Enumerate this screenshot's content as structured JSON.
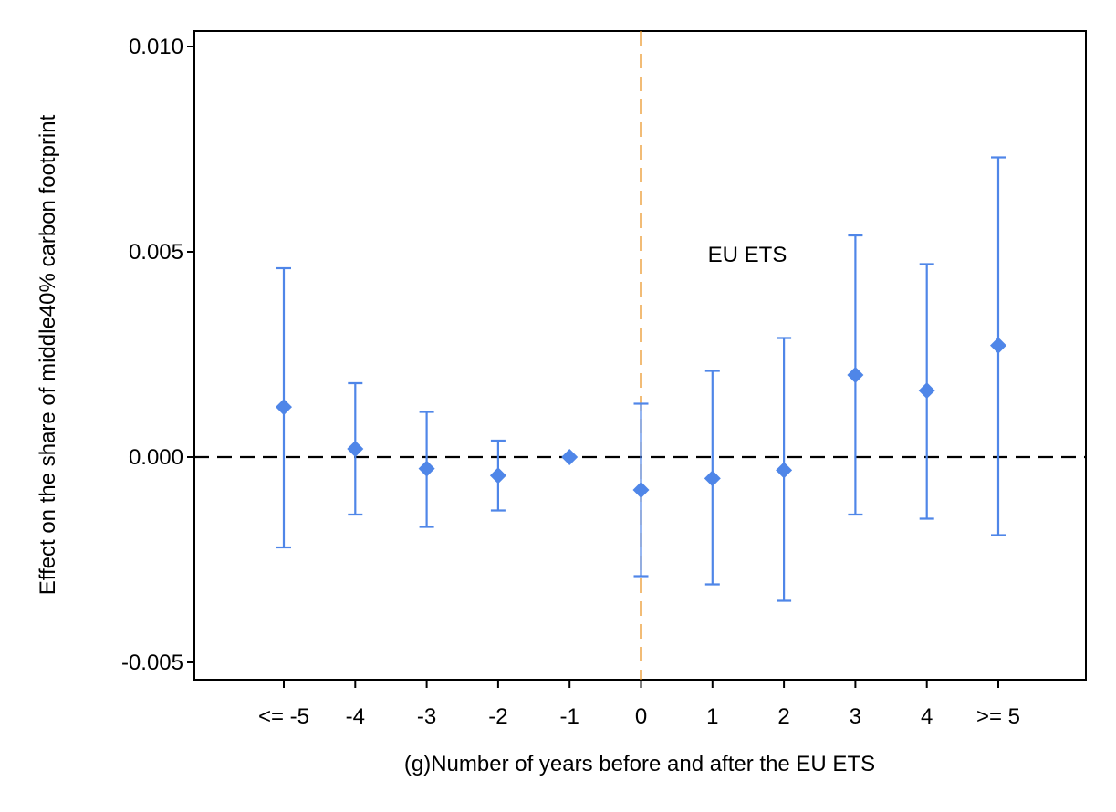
{
  "chart_data": {
    "type": "scatter",
    "title": "",
    "xlabel": "(g)Number of years before and after the EU ETS",
    "ylabel": "Effect on the share of middle40% carbon footprint",
    "categories": [
      "<= -5",
      "-4",
      "-3",
      "-2",
      "-1",
      "0",
      "1",
      "2",
      "3",
      "4",
      ">= 5"
    ],
    "ylim": [
      -0.0055,
      0.0104
    ],
    "yticks": [
      {
        "value": -0.005,
        "label": "-0.005"
      },
      {
        "value": 0.0,
        "label": "0.000"
      },
      {
        "value": 0.005,
        "label": "0.005"
      },
      {
        "value": 0.01,
        "label": "0.010"
      }
    ],
    "series": [
      {
        "estimates": [
          0.00122,
          0.0002,
          -0.00028,
          -0.00045,
          0.0,
          -0.0008,
          -0.00052,
          -0.00032,
          0.002,
          0.00162,
          0.00272
        ],
        "ci_low": [
          -0.0022,
          -0.0014,
          -0.0017,
          -0.0013,
          0.0,
          -0.0029,
          -0.0031,
          -0.0035,
          -0.0014,
          -0.0015,
          -0.0019
        ],
        "ci_high": [
          0.0046,
          0.0018,
          0.0011,
          0.0004,
          0.0,
          0.0013,
          0.0021,
          0.0029,
          0.0054,
          0.0047,
          0.0073
        ],
        "color": "#4f86e8"
      }
    ],
    "reference_lines": {
      "horizontal": {
        "value": 0.0,
        "style": "dashed",
        "color": "#000000"
      },
      "vertical": {
        "category": "0",
        "style": "dashed",
        "color": "#e8901c"
      }
    },
    "annotation": {
      "text": "EU ETS"
    },
    "grid": false,
    "legend": "none"
  }
}
